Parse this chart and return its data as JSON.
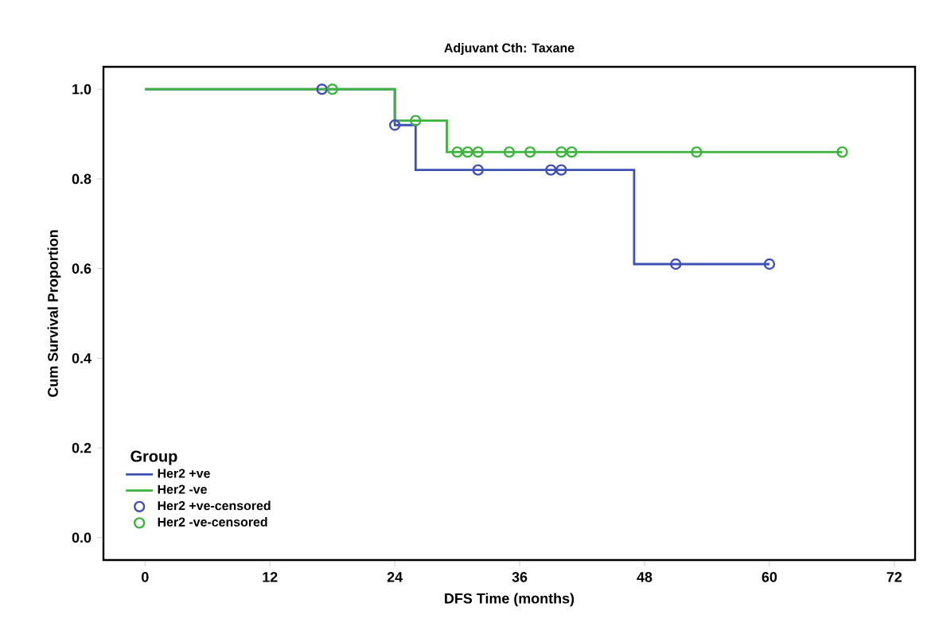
{
  "chart_data": {
    "type": "step",
    "title": "Adjuvant Cth: Taxane",
    "xlabel": "DFS Time (months)",
    "ylabel": "Cum Survival Proportion",
    "legend_title": "Group",
    "legend": "bottom left",
    "xlim": [
      -4,
      74
    ],
    "xticks": [
      0,
      12,
      24,
      36,
      48,
      60,
      72
    ],
    "ylim": [
      -0.05,
      1.05
    ],
    "yticks": [
      {
        "value": 0,
        "label": "0.0"
      },
      {
        "value": 0.2,
        "label": "0.2"
      },
      {
        "value": 0.4,
        "label": "0.4"
      },
      {
        "value": 0.6,
        "label": "0.6"
      },
      {
        "value": 0.8,
        "label": "0.8"
      },
      {
        "value": 1,
        "label": "1.0"
      }
    ],
    "series": [
      {
        "name": "Her2 +ve",
        "marker": "none",
        "color": "#3f51b5",
        "x": [
          0,
          24,
          26,
          47,
          60
        ],
        "values": [
          1,
          0.92,
          0.82,
          0.61,
          0.61
        ]
      },
      {
        "name": "Her2 -ve",
        "marker": "none",
        "color": "#3cb43c",
        "x": [
          0,
          24,
          29,
          67
        ],
        "values": [
          1,
          0.93,
          0.86,
          0.86
        ]
      },
      {
        "name": "Her2 +ve-censored",
        "type": "scatter",
        "marker": "circle",
        "color": "#3f51b5",
        "x": [
          17,
          24,
          32,
          39,
          40,
          51,
          60
        ],
        "values": [
          1,
          0.92,
          0.82,
          0.82,
          0.82,
          0.61,
          0.61
        ]
      },
      {
        "name": "Her2 -ve-censored",
        "type": "scatter",
        "marker": "circle",
        "color": "#3cb43c",
        "x": [
          18,
          26,
          30,
          31,
          32,
          35,
          37,
          40,
          41,
          53,
          67
        ],
        "values": [
          1,
          0.93,
          0.86,
          0.86,
          0.86,
          0.86,
          0.86,
          0.86,
          0.86,
          0.86,
          0.86
        ]
      }
    ]
  }
}
